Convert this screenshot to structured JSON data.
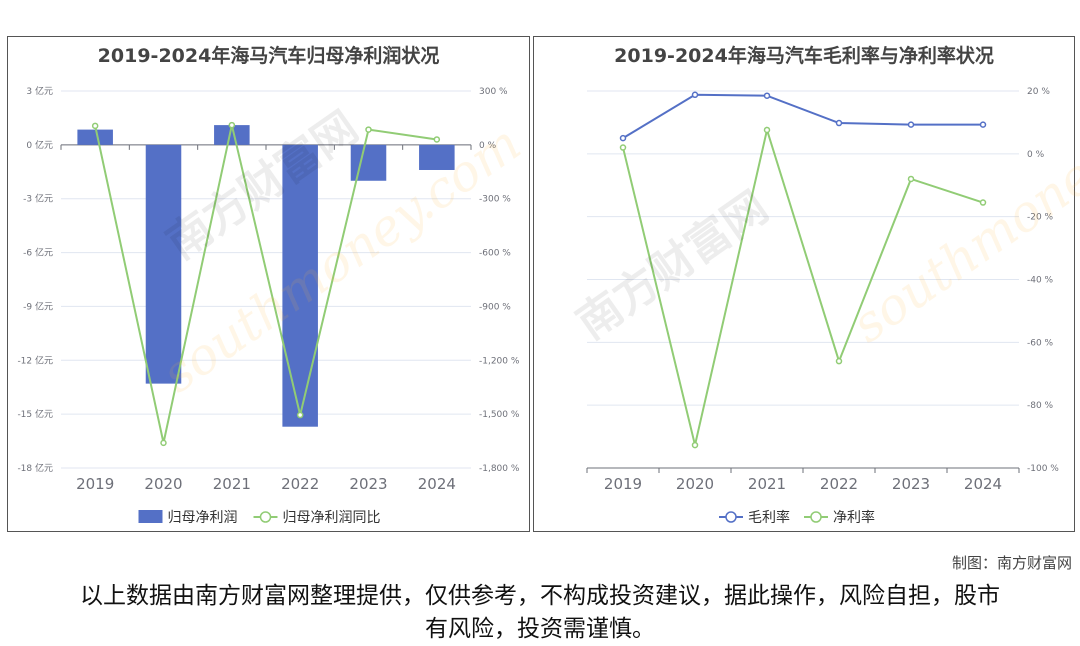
{
  "chart_data": [
    {
      "type": "bar+line",
      "title": "2019-2024年海马汽车归母净利润状况",
      "categories": [
        "2019",
        "2020",
        "2021",
        "2022",
        "2023",
        "2024"
      ],
      "y_left": {
        "ticks": [
          3,
          0,
          -3,
          -6,
          -9,
          -12,
          -15,
          -18
        ],
        "unit": "亿元",
        "range": [
          -18,
          3
        ]
      },
      "y_right": {
        "ticks": [
          300,
          0,
          -300,
          -600,
          -900,
          -1200,
          -1500,
          -1800
        ],
        "tick_labels": [
          "300 %",
          "0 %",
          "-300 %",
          "-600 %",
          "-900 %",
          "-1,200 %",
          "-1,500 %",
          "-1,800 %"
        ],
        "range": [
          -1800,
          300
        ]
      },
      "series": [
        {
          "name": "归母净利润",
          "type": "bar",
          "axis": "left",
          "color": "#5470c6",
          "values": [
            0.85,
            -13.3,
            1.1,
            -15.7,
            -2.0,
            -1.4
          ]
        },
        {
          "name": "归母净利润同比",
          "type": "line",
          "axis": "right",
          "color": "#91cc75",
          "values": [
            106,
            -1660,
            110,
            -1505,
            85,
            30
          ]
        }
      ],
      "legend": "bottom",
      "grid": true
    },
    {
      "type": "line",
      "title": "2019-2024年海马汽车毛利率与净利率状况",
      "categories": [
        "2019",
        "2020",
        "2021",
        "2022",
        "2023",
        "2024"
      ],
      "y_right": {
        "ticks": [
          20,
          0,
          -20,
          -40,
          -60,
          -80,
          -100
        ],
        "tick_labels": [
          "20 %",
          "0 %",
          "-20 %",
          "-40 %",
          "-60 %",
          "-80 %",
          "-100 %"
        ],
        "range": [
          -100,
          20
        ]
      },
      "series": [
        {
          "name": "毛利率",
          "color": "#5470c6",
          "values": [
            5.0,
            18.8,
            18.5,
            9.8,
            9.3,
            9.3
          ]
        },
        {
          "name": "净利率",
          "color": "#91cc75",
          "values": [
            2.0,
            -92.7,
            7.6,
            -66,
            -8,
            -15.5
          ]
        }
      ],
      "legend": "bottom",
      "grid": true
    }
  ],
  "watermark": "南方财富网 southmoney.com",
  "credit": "制图：南方财富网",
  "disclaimer": "以上数据由南方财富网整理提供，仅供参考，不构成投资建议，据此操作，风险自担，股市有风险，投资需谨慎。"
}
